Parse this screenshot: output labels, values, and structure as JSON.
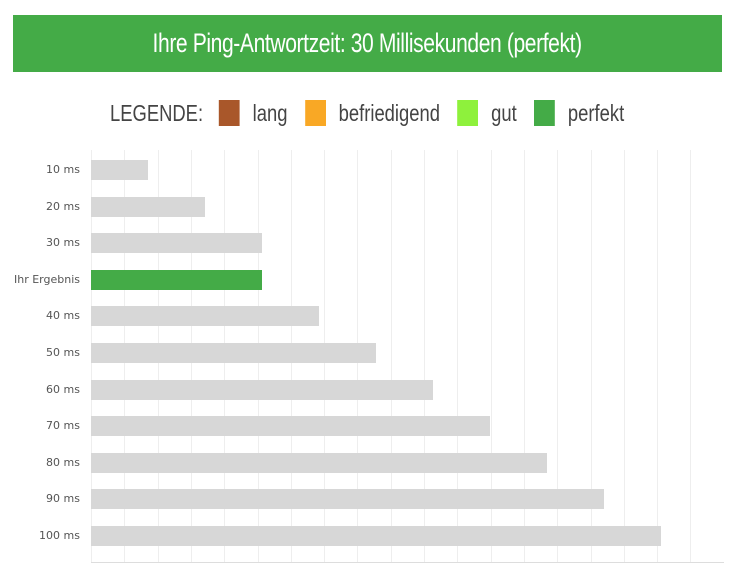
{
  "header": {
    "title": "Ihre Ping-Antwortzeit: 30 Millisekunden (perfekt)",
    "color": "#44ab47"
  },
  "legend": {
    "title": "LEGENDE:",
    "items": [
      {
        "label": "lang",
        "color": "#a9572a"
      },
      {
        "label": "befriedigend",
        "color": "#f9a825"
      },
      {
        "label": "gut",
        "color": "#8ef13c"
      },
      {
        "label": "perfekt",
        "color": "#44ab47"
      }
    ]
  },
  "chart_data": {
    "type": "bar",
    "orientation": "horizontal",
    "title": "Ihre Ping-Antwortzeit: 30 Millisekunden (perfekt)",
    "xlabel": "",
    "ylabel": "",
    "categories": [
      "10 ms",
      "20 ms",
      "30 ms",
      "Ihr Ergebnis",
      "40 ms",
      "50 ms",
      "60 ms",
      "70 ms",
      "80 ms",
      "90 ms",
      "100 ms"
    ],
    "values": [
      10,
      20,
      30,
      30,
      40,
      50,
      60,
      70,
      80,
      90,
      100
    ],
    "bar_colors": [
      "#d7d7d7",
      "#d7d7d7",
      "#d7d7d7",
      "#44ab47",
      "#d7d7d7",
      "#d7d7d7",
      "#d7d7d7",
      "#d7d7d7",
      "#d7d7d7",
      "#d7d7d7",
      "#d7d7d7"
    ],
    "xlim": [
      0,
      111
    ],
    "grid": true,
    "legend_position": "top",
    "legend": [
      "lang",
      "befriedigend",
      "gut",
      "perfekt"
    ]
  }
}
